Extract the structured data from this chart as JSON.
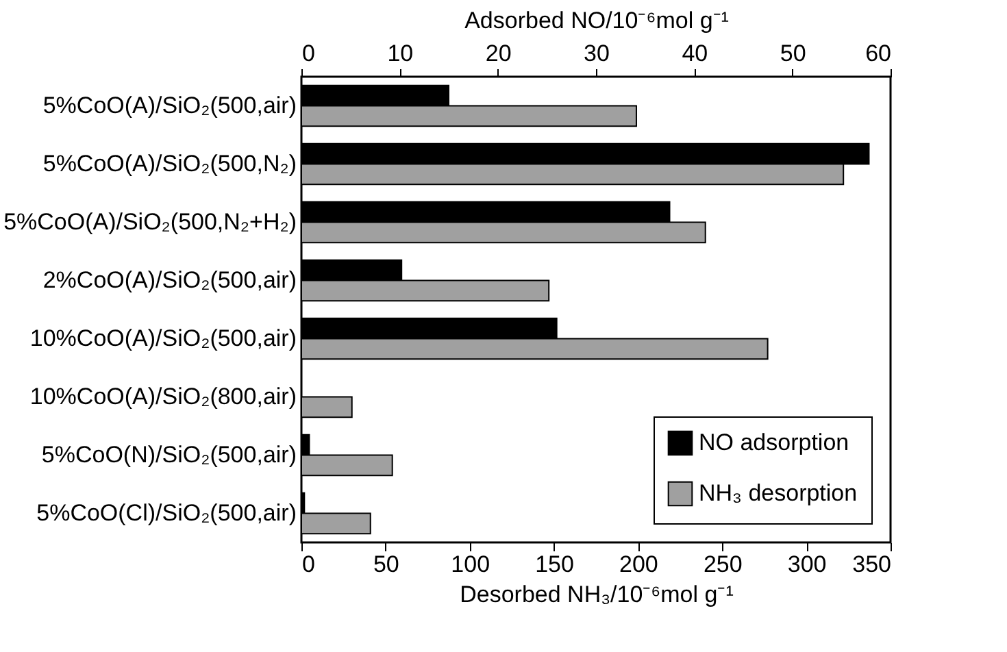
{
  "chart_data": {
    "type": "bar",
    "orientation": "horizontal",
    "categories": [
      "5%CoO(A)/SiO₂(500,air)",
      "5%CoO(A)/SiO₂(500,N₂)",
      "5%CoO(A)/SiO₂(500,N₂+H₂)",
      "2%CoO(A)/SiO₂(500,air)",
      "10%CoO(A)/SiO₂(500,air)",
      "10%CoO(A)/SiO₂(800,air)",
      "5%CoO(N)/SiO₂(500,air)",
      "5%CoO(Cl)/SiO₂(500,air)"
    ],
    "series": [
      {
        "name": "NO adsorption",
        "color": "#000000",
        "axis": "x2",
        "values": [
          15,
          57.8,
          37.5,
          10.2,
          26,
          0,
          0.8,
          0.3
        ]
      },
      {
        "name": "NH₃ desorption",
        "color": "#a0a0a0",
        "values": [
          199,
          322,
          240,
          147,
          277,
          30,
          54,
          41
        ]
      }
    ],
    "xlabel": "Desorbed NH₃/10⁻⁶mol g⁻¹",
    "xlim": [
      0,
      350
    ],
    "xticks": [
      0,
      50,
      100,
      150,
      200,
      250,
      300,
      350
    ],
    "x2label": "Adsorbed NO/10⁻⁶mol g⁻¹",
    "x2lim": [
      0,
      60
    ],
    "x2ticks": [
      0,
      10,
      20,
      30,
      40,
      50,
      60
    ],
    "grid": false,
    "legend": "bottom right"
  }
}
